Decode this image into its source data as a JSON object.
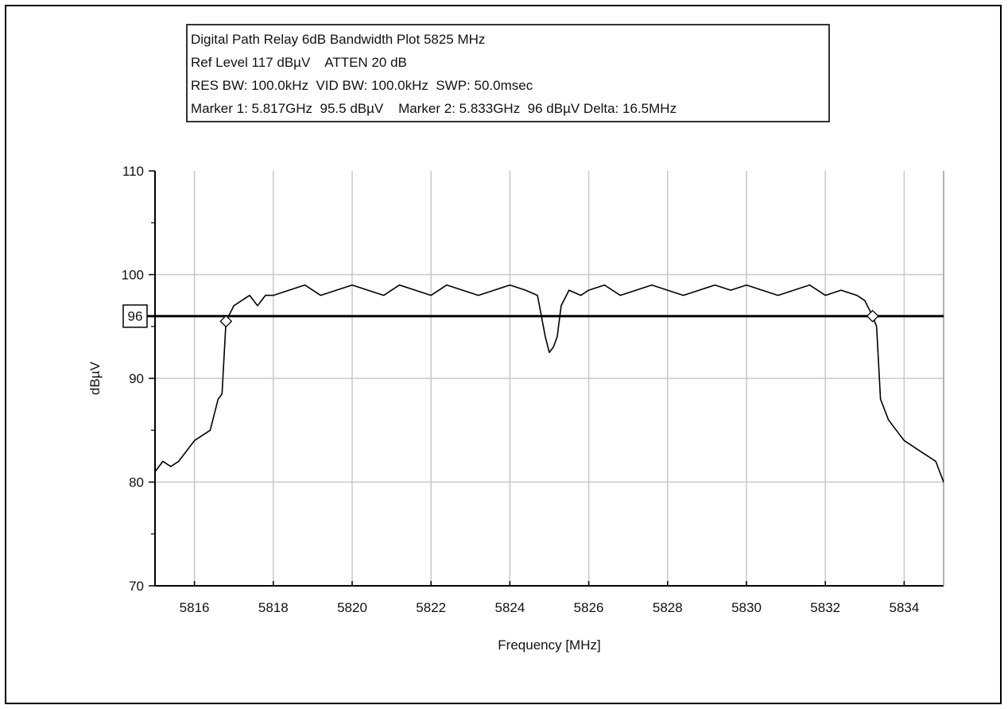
{
  "chart_data": {
    "type": "line",
    "title_lines": [
      "Digital Path Relay 6dB Bandwidth Plot 5825 MHz",
      "Ref Level 117 dBµV    ATTEN 20 dB",
      "RES BW: 100.0kHz  VID BW: 100.0kHz  SWP: 50.0msec",
      "Marker 1: 5.817GHz  95.5 dBµV    Marker 2: 5.833GHz  96 dBµV Delta: 16.5MHz"
    ],
    "xlabel": "Frequency [MHz]",
    "ylabel": "dBµV",
    "xlim": [
      5815,
      5835
    ],
    "ylim": [
      70,
      110
    ],
    "x_ticks": [
      5816,
      5818,
      5820,
      5822,
      5824,
      5826,
      5828,
      5830,
      5832,
      5834
    ],
    "y_ticks": [
      70,
      80,
      90,
      100,
      110
    ],
    "grid": true,
    "reference_line": {
      "label": "96",
      "value": 96
    },
    "markers": [
      {
        "name": "Marker 1",
        "x": 5816.8,
        "y": 95.5
      },
      {
        "name": "Marker 2",
        "x": 5833.2,
        "y": 96
      }
    ],
    "series": [
      {
        "x": [
          5815.0,
          5815.2,
          5815.4,
          5815.6,
          5815.8,
          5816.0,
          5816.2,
          5816.4,
          5816.6,
          5816.7,
          5816.8,
          5817.0,
          5817.2,
          5817.4,
          5817.6,
          5817.8,
          5818.0,
          5818.4,
          5818.8,
          5819.2,
          5819.6,
          5820.0,
          5820.4,
          5820.8,
          5821.2,
          5821.6,
          5822.0,
          5822.4,
          5822.8,
          5823.2,
          5823.6,
          5824.0,
          5824.4,
          5824.7,
          5824.9,
          5825.0,
          5825.1,
          5825.2,
          5825.3,
          5825.5,
          5825.8,
          5826.0,
          5826.4,
          5826.8,
          5827.2,
          5827.6,
          5828.0,
          5828.4,
          5828.8,
          5829.2,
          5829.6,
          5830.0,
          5830.4,
          5830.8,
          5831.2,
          5831.6,
          5832.0,
          5832.4,
          5832.8,
          5833.0,
          5833.2,
          5833.3,
          5833.4,
          5833.6,
          5833.8,
          5834.0,
          5834.2,
          5834.4,
          5834.6,
          5834.8,
          5835.0
        ],
        "y": [
          81,
          82,
          81.5,
          82,
          83,
          84,
          84.5,
          85,
          88,
          88.5,
          95.5,
          97,
          97.5,
          98,
          97,
          98,
          98,
          98.5,
          99,
          98,
          98.5,
          99,
          98.5,
          98,
          99,
          98.5,
          98,
          99,
          98.5,
          98,
          98.5,
          99,
          98.5,
          98,
          94,
          92.5,
          93,
          94,
          97,
          98.5,
          98,
          98.5,
          99,
          98,
          98.5,
          99,
          98.5,
          98,
          98.5,
          99,
          98.5,
          99,
          98.5,
          98,
          98.5,
          99,
          98,
          98.5,
          98,
          97.5,
          96,
          95,
          88,
          86,
          85,
          84,
          83.5,
          83,
          82.5,
          82,
          80
        ]
      }
    ]
  }
}
